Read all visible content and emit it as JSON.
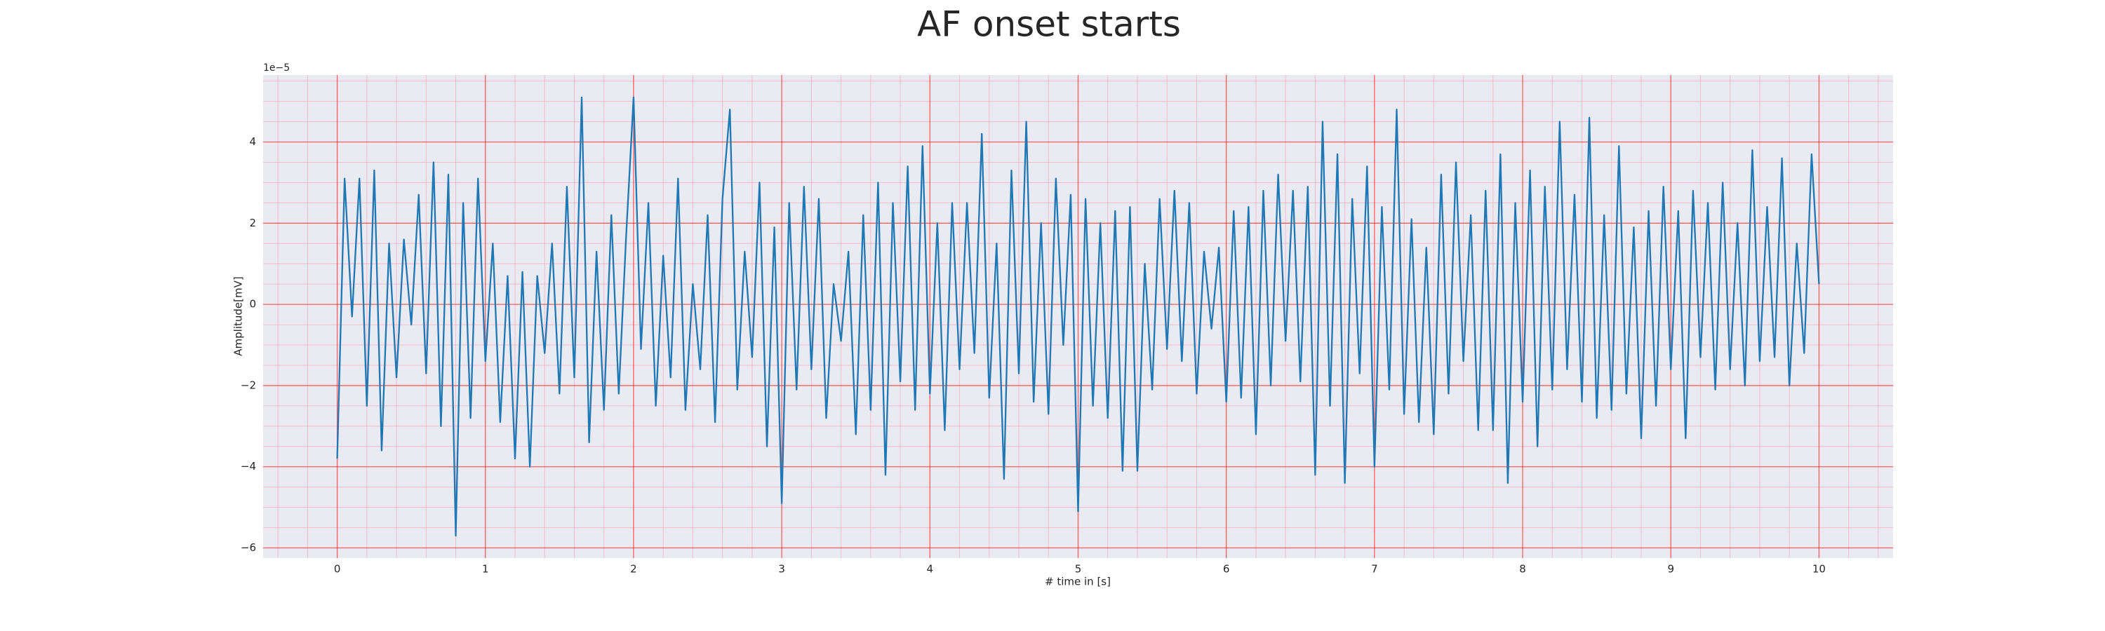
{
  "chart_data": {
    "type": "line",
    "title": "AF onset starts",
    "xlabel": "# time in [s]",
    "ylabel": "Amplitude[mV]",
    "y_offset_label": "1e−5",
    "color": "#1f77b4",
    "grid": true,
    "minor_grid": true,
    "xlim": [
      -0.5,
      10.5
    ],
    "ylim": [
      -6.25,
      5.65
    ],
    "xticks": [
      0,
      1,
      2,
      3,
      4,
      5,
      6,
      7,
      8,
      9,
      10
    ],
    "yticks": [
      {
        "value": -6,
        "label": "−6"
      },
      {
        "value": -4,
        "label": "−4"
      },
      {
        "value": -2,
        "label": "−2"
      },
      0,
      2,
      4
    ],
    "xminorticks": [
      -0.4,
      -0.2,
      0.2,
      0.4,
      0.6,
      0.8,
      1.2,
      1.4,
      1.6,
      1.8,
      2.2,
      2.4,
      2.6,
      2.8,
      3.2,
      3.4,
      3.6,
      3.8,
      4.2,
      4.4,
      4.6,
      4.8,
      5.2,
      5.4,
      5.6,
      5.8,
      6.2,
      6.4,
      6.6,
      6.8,
      7.2,
      7.4,
      7.6,
      7.8,
      8.2,
      8.4,
      8.6,
      8.8,
      9.2,
      9.4,
      9.6,
      9.8,
      10.2,
      10.4
    ],
    "yminorticks": [
      -5.5,
      -5,
      -4.5,
      -3.5,
      -3,
      -2.5,
      -1.5,
      -1,
      -0.5,
      0.5,
      1,
      1.5,
      2.5,
      3,
      3.5,
      4.5,
      5,
      5.5
    ],
    "x": [
      0,
      0.05,
      0.1,
      0.15,
      0.2,
      0.25,
      0.3,
      0.35,
      0.4,
      0.45,
      0.5,
      0.55,
      0.6,
      0.65,
      0.7,
      0.75,
      0.8,
      0.85,
      0.9,
      0.95,
      1,
      1.05,
      1.1,
      1.15,
      1.2,
      1.25,
      1.3,
      1.35,
      1.4,
      1.45,
      1.5,
      1.55,
      1.6,
      1.65,
      1.7,
      1.75,
      1.8,
      1.85,
      1.9,
      1.95,
      2,
      2.05,
      2.1,
      2.15,
      2.2,
      2.25,
      2.3,
      2.35,
      2.4,
      2.45,
      2.5,
      2.55,
      2.6,
      2.65,
      2.7,
      2.75,
      2.8,
      2.85,
      2.9,
      2.95,
      3,
      3.05,
      3.1,
      3.15,
      3.2,
      3.25,
      3.3,
      3.35,
      3.4,
      3.45,
      3.5,
      3.55,
      3.6,
      3.65,
      3.7,
      3.75,
      3.8,
      3.85,
      3.9,
      3.95,
      4,
      4.05,
      4.1,
      4.15,
      4.2,
      4.25,
      4.3,
      4.35,
      4.4,
      4.45,
      4.5,
      4.55,
      4.6,
      4.65,
      4.7,
      4.75,
      4.8,
      4.85,
      4.9,
      4.95,
      5,
      5.05,
      5.1,
      5.15,
      5.2,
      5.25,
      5.3,
      5.35,
      5.4,
      5.45,
      5.5,
      5.55,
      5.6,
      5.65,
      5.7,
      5.75,
      5.8,
      5.85,
      5.9,
      5.95,
      6,
      6.05,
      6.1,
      6.15,
      6.2,
      6.25,
      6.3,
      6.35,
      6.4,
      6.45,
      6.5,
      6.55,
      6.6,
      6.65,
      6.7,
      6.75,
      6.8,
      6.85,
      6.9,
      6.95,
      7,
      7.05,
      7.1,
      7.15,
      7.2,
      7.25,
      7.3,
      7.35,
      7.4,
      7.45,
      7.5,
      7.55,
      7.6,
      7.65,
      7.7,
      7.75,
      7.8,
      7.85,
      7.9,
      7.95,
      8,
      8.05,
      8.1,
      8.15,
      8.2,
      8.25,
      8.3,
      8.35,
      8.4,
      8.45,
      8.5,
      8.55,
      8.6,
      8.65,
      8.7,
      8.75,
      8.8,
      8.85,
      8.9,
      8.95,
      9,
      9.05,
      9.1,
      9.15,
      9.2,
      9.25,
      9.3,
      9.35,
      9.4,
      9.45,
      9.5,
      9.55,
      9.6,
      9.65,
      9.7,
      9.75,
      9.8,
      9.85,
      9.9,
      9.95,
      10
    ],
    "values": [
      -3.8,
      3.1,
      -0.3,
      3.1,
      -2.5,
      3.3,
      -3.6,
      1.5,
      -1.8,
      1.6,
      -0.5,
      2.7,
      -1.7,
      3.5,
      -3.0,
      3.2,
      -5.7,
      2.5,
      -2.8,
      3.1,
      -1.4,
      1.5,
      -2.9,
      0.7,
      -3.8,
      0.8,
      -4.0,
      0.7,
      -1.2,
      1.5,
      -2.2,
      2.9,
      -1.8,
      5.1,
      -3.4,
      1.3,
      -2.6,
      2.2,
      -2.2,
      1.7,
      5.1,
      -1.1,
      2.5,
      -2.5,
      1.2,
      -1.8,
      3.1,
      -2.6,
      0.5,
      -1.6,
      2.2,
      -2.9,
      2.6,
      4.8,
      -2.1,
      1.3,
      -1.3,
      3.0,
      -3.5,
      1.9,
      -4.9,
      2.5,
      -2.1,
      2.9,
      -1.6,
      2.6,
      -2.8,
      0.5,
      -0.9,
      1.3,
      -3.2,
      2.2,
      -2.6,
      3.0,
      -4.2,
      2.5,
      -1.9,
      3.4,
      -2.6,
      3.9,
      -2.2,
      2.0,
      -3.1,
      2.5,
      -1.6,
      2.5,
      -1.2,
      4.2,
      -2.3,
      1.5,
      -4.3,
      3.3,
      -1.7,
      4.5,
      -2.4,
      2.0,
      -2.7,
      3.1,
      -1.0,
      2.7,
      -5.1,
      2.6,
      -2.5,
      2.0,
      -2.8,
      2.3,
      -4.1,
      2.4,
      -4.1,
      1.0,
      -2.1,
      2.6,
      -1.1,
      2.8,
      -1.4,
      2.5,
      -2.2,
      1.3,
      -0.6,
      1.4,
      -2.4,
      2.3,
      -2.3,
      2.4,
      -3.2,
      2.8,
      -2.0,
      3.2,
      -0.9,
      2.8,
      -1.9,
      2.9,
      -4.2,
      4.5,
      -2.5,
      3.7,
      -4.4,
      2.6,
      -1.7,
      3.4,
      -4.0,
      2.4,
      -2.1,
      4.8,
      -2.7,
      2.1,
      -2.9,
      1.4,
      -3.2,
      3.2,
      -2.2,
      3.5,
      -1.4,
      2.2,
      -3.1,
      2.8,
      -3.1,
      3.7,
      -4.4,
      2.5,
      -2.4,
      3.3,
      -3.5,
      2.9,
      -2.1,
      4.5,
      -1.6,
      2.7,
      -2.4,
      4.6,
      -2.8,
      2.2,
      -2.6,
      3.9,
      -2.2,
      1.9,
      -3.3,
      2.3,
      -2.5,
      2.9,
      -1.6,
      2.3,
      -3.3,
      2.8,
      -1.3,
      2.5,
      -2.1,
      3.0,
      -1.6,
      2.0,
      -2.0,
      3.8,
      -1.4,
      2.4,
      -1.3,
      3.6,
      -2.0,
      1.5,
      -1.2,
      3.7,
      0.5
    ]
  }
}
